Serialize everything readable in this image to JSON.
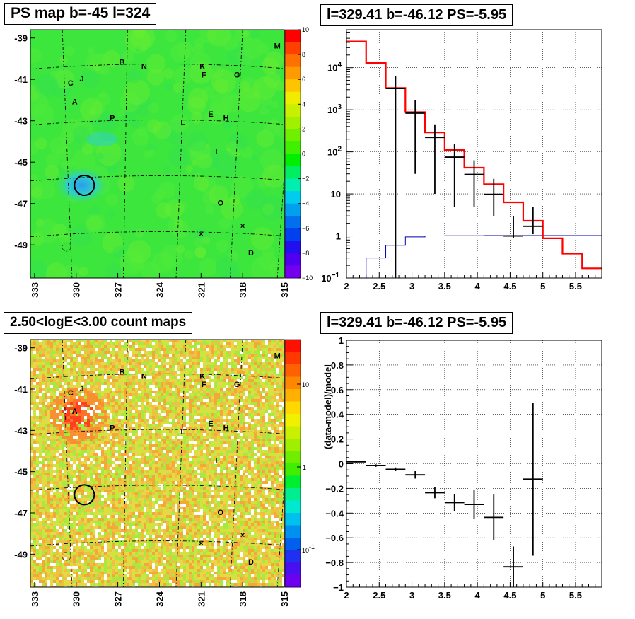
{
  "panels": {
    "ps_map_title": "PS map b=-45 l=324",
    "spectrum_title": "l=329.41 b=-46.12 PS=-5.95",
    "count_map_title": "2.50<logE<3.00 count maps",
    "residual_title": "l=329.41 b=-46.12 PS=-5.95"
  },
  "maps": {
    "y_ticks": [
      "-39",
      "-41",
      "-43",
      "-45",
      "-47",
      "-49"
    ],
    "x_ticks": [
      "333",
      "330",
      "327",
      "324",
      "321",
      "318",
      "315"
    ],
    "sources": [
      {
        "label": "B",
        "l": 326.7,
        "b": -40.3
      },
      {
        "label": "N",
        "l": 325.1,
        "b": -40.5
      },
      {
        "label": "K",
        "l": 320.9,
        "b": -40.5
      },
      {
        "label": "M",
        "l": 315.5,
        "b": -39.5
      },
      {
        "label": "C",
        "l": 330.4,
        "b": -41.3
      },
      {
        "label": "J",
        "l": 329.6,
        "b": -41.1
      },
      {
        "label": "F",
        "l": 320.8,
        "b": -40.9
      },
      {
        "label": "G",
        "l": 318.4,
        "b": -40.9
      },
      {
        "label": "A",
        "l": 330.1,
        "b": -42.2
      },
      {
        "label": "P",
        "l": 327.4,
        "b": -43.0
      },
      {
        "label": "E",
        "l": 320.3,
        "b": -42.8
      },
      {
        "label": "H",
        "l": 319.2,
        "b": -43.0
      },
      {
        "label": "L",
        "l": 322.3,
        "b": -43.2
      },
      {
        "label": "I",
        "l": 319.9,
        "b": -44.6
      },
      {
        "label": "O",
        "l": 319.6,
        "b": -47.1
      },
      {
        "label": "D",
        "l": 317.4,
        "b": -49.5
      }
    ],
    "ps_colorbar_labels": [
      "10",
      "8",
      "6",
      "4",
      "2",
      "0",
      "−2",
      "−4",
      "−6",
      "−8",
      "−10"
    ],
    "count_colorbar_labels": [
      "10",
      "1",
      "10",
      "-1"
    ]
  },
  "chart_data": [
    {
      "type": "heatmap",
      "title": "PS map b=-45 l=324",
      "x_ticks": [
        "333",
        "330",
        "327",
        "324",
        "321",
        "318",
        "315"
      ],
      "y_ticks": [
        "-39",
        "-41",
        "-43",
        "-45",
        "-47",
        "-49"
      ],
      "xlim": [
        333,
        315
      ],
      "ylim": [
        -50.6,
        -38.6
      ],
      "zlim": [
        -10,
        10
      ],
      "marked_position": {
        "l": 329.41,
        "b": -46.12
      },
      "colors": {
        "background": "#3ee83e",
        "hotspot": "#2aa8ee"
      }
    },
    {
      "type": "line",
      "title": "l=329.41 b=-46.12 PS=-5.95",
      "xlim": [
        2,
        5.9
      ],
      "ylim": [
        0.1,
        80000
      ],
      "y_scale": "log",
      "x_ticks": [
        "2",
        "2.5",
        "3",
        "3.5",
        "4",
        "4.5",
        "5",
        "5.5"
      ],
      "y_ticks": [
        "10^-1",
        "1",
        "10",
        "10^2",
        "10^3",
        "10^4"
      ],
      "model_total": {
        "color": "#ff0000",
        "edges": [
          2.0,
          2.3,
          2.6,
          2.9,
          3.2,
          3.5,
          3.8,
          4.1,
          4.4,
          4.7,
          5.0,
          5.3,
          5.6,
          5.9
        ],
        "values": [
          42000,
          13000,
          3300,
          880,
          290,
          110,
          42,
          17,
          6.3,
          2.3,
          0.88,
          0.38,
          0.17
        ]
      },
      "model_ps": {
        "color": "#0000aa",
        "edges": [
          2.0,
          2.3,
          2.6,
          2.9,
          3.2,
          3.5,
          3.8,
          4.1,
          4.4,
          4.7,
          5.0,
          5.3,
          5.6,
          5.9
        ],
        "values": [
          0.1,
          0.3,
          0.6,
          0.95,
          1.0,
          1.01,
          1.01,
          1.02,
          1.02,
          1.02,
          1.02,
          1.02,
          1.02
        ]
      },
      "data_points": [
        {
          "x": 2.75,
          "y": 3200,
          "yerr_lo": 3200,
          "yerr_hi": 3200
        },
        {
          "x": 3.05,
          "y": 830,
          "yerr_lo": 800,
          "yerr_hi": 870
        },
        {
          "x": 3.35,
          "y": 220,
          "yerr_lo": 210,
          "yerr_hi": 230
        },
        {
          "x": 3.65,
          "y": 75,
          "yerr_lo": 70,
          "yerr_hi": 80
        },
        {
          "x": 3.95,
          "y": 29,
          "yerr_lo": 24,
          "yerr_hi": 34
        },
        {
          "x": 4.25,
          "y": 9.8,
          "yerr_lo": 6.8,
          "yerr_hi": 13
        },
        {
          "x": 4.55,
          "y": 1.0,
          "yerr_lo": 0.1,
          "yerr_hi": 2.0
        },
        {
          "x": 4.85,
          "y": 1.7,
          "yerr_lo": 0.6,
          "yerr_hi": 3.2
        }
      ]
    },
    {
      "type": "heatmap",
      "title": "2.50<logE<3.00 count maps",
      "x_ticks": [
        "333",
        "330",
        "327",
        "324",
        "321",
        "318",
        "315"
      ],
      "y_ticks": [
        "-39",
        "-41",
        "-43",
        "-45",
        "-47",
        "-49"
      ],
      "z_scale": "log",
      "colorbar_ticks": [
        "10",
        "1",
        "10^-1"
      ],
      "marked_position": {
        "l": 329.41,
        "b": -46.12
      }
    },
    {
      "type": "scatter",
      "title": "l=329.41 b=-46.12 PS=-5.95",
      "ylabel": "(data-model)/model",
      "xlim": [
        2,
        5.9
      ],
      "ylim": [
        -1,
        1
      ],
      "x_ticks": [
        "2",
        "2.5",
        "3",
        "3.5",
        "4",
        "4.5",
        "5",
        "5.5"
      ],
      "y_ticks": [
        "−1",
        "−0.8",
        "−0.6",
        "−0.4",
        "−0.2",
        "0",
        "0.2",
        "0.4",
        "0.6",
        "0.8",
        "1"
      ],
      "points": [
        {
          "x": 2.15,
          "y": 0.015,
          "yerr": 0.008
        },
        {
          "x": 2.45,
          "y": -0.015,
          "yerr": 0.01
        },
        {
          "x": 2.75,
          "y": -0.045,
          "yerr": 0.015
        },
        {
          "x": 3.05,
          "y": -0.09,
          "yerr": 0.03
        },
        {
          "x": 3.35,
          "y": -0.235,
          "yerr": 0.045
        },
        {
          "x": 3.65,
          "y": -0.315,
          "yerr": 0.07
        },
        {
          "x": 3.95,
          "y": -0.33,
          "yerr": 0.12
        },
        {
          "x": 4.25,
          "y": -0.435,
          "yerr": 0.185
        },
        {
          "x": 4.55,
          "y": -0.835,
          "yerr": 0.165
        },
        {
          "x": 4.85,
          "y": -0.125,
          "yerr": 0.62
        }
      ]
    }
  ]
}
